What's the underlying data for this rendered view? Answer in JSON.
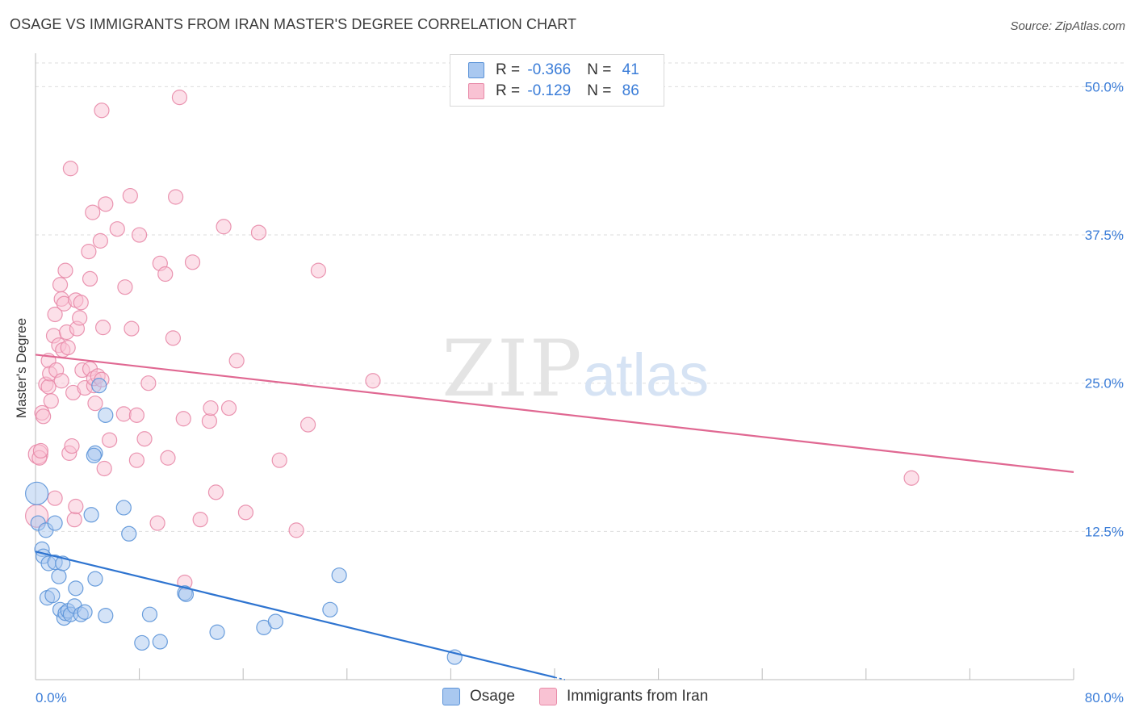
{
  "title": "OSAGE VS IMMIGRANTS FROM IRAN MASTER'S DEGREE CORRELATION CHART",
  "source": "Source: ZipAtlas.com",
  "watermark": {
    "zip": "ZIP",
    "atlas": "atlas"
  },
  "legend_top": {
    "rows": [
      {
        "r_label": "R = ",
        "r_value": "-0.366",
        "n_label": "N = ",
        "n_value": "41",
        "color": "#a9c8f0",
        "border": "#5b93d8"
      },
      {
        "r_label": "R = ",
        "r_value": "-0.129",
        "n_label": "N = ",
        "n_value": "86",
        "color": "#f9c2d3",
        "border": "#e88aa8"
      }
    ]
  },
  "legend_bottom": [
    {
      "label": "Osage",
      "color": "#a9c8f0",
      "border": "#5b93d8"
    },
    {
      "label": "Immigrants from Iran",
      "color": "#f9c2d3",
      "border": "#e88aa8"
    }
  ],
  "chart_data": {
    "type": "scatter",
    "ylabel": "Master's Degree",
    "x_tick_labels": {
      "min": "0.0%",
      "max": "80.0%"
    },
    "y_tick_labels": [
      "12.5%",
      "25.0%",
      "37.5%",
      "50.0%"
    ],
    "xlim": [
      0,
      80
    ],
    "ylim": [
      0,
      52
    ],
    "grid": true,
    "series": [
      {
        "name": "Osage",
        "color": "#5b93d8",
        "fill": "#a9c8f0",
        "trend": {
          "x": [
            0,
            40
          ],
          "y": [
            10.8,
            0.2
          ],
          "color": "#2e74d0"
        },
        "points": [
          [
            0.1,
            15.7,
            14
          ],
          [
            0.2,
            13.2,
            9
          ],
          [
            0.5,
            11.0,
            9
          ],
          [
            0.6,
            10.4,
            9
          ],
          [
            0.8,
            12.6,
            9
          ],
          [
            0.9,
            6.9,
            9
          ],
          [
            1.0,
            9.8,
            9
          ],
          [
            1.3,
            7.1,
            9
          ],
          [
            1.5,
            9.9,
            9
          ],
          [
            1.5,
            13.2,
            9
          ],
          [
            1.8,
            8.7,
            9
          ],
          [
            1.9,
            5.9,
            9
          ],
          [
            2.1,
            9.8,
            9
          ],
          [
            2.2,
            5.2,
            9
          ],
          [
            2.3,
            5.6,
            9
          ],
          [
            2.5,
            5.8,
            9
          ],
          [
            2.7,
            5.5,
            9
          ],
          [
            3.0,
            6.2,
            9
          ],
          [
            3.1,
            7.7,
            9
          ],
          [
            3.5,
            5.5,
            9
          ],
          [
            3.8,
            5.7,
            9
          ],
          [
            4.3,
            13.9,
            9
          ],
          [
            4.6,
            8.5,
            9
          ],
          [
            4.6,
            19.1,
            9
          ],
          [
            4.9,
            24.8,
            9
          ],
          [
            5.4,
            5.4,
            9
          ],
          [
            5.4,
            22.3,
            9
          ],
          [
            6.8,
            14.5,
            9
          ],
          [
            7.2,
            12.3,
            9
          ],
          [
            8.2,
            3.1,
            9
          ],
          [
            8.8,
            5.5,
            9
          ],
          [
            9.6,
            3.2,
            9
          ],
          [
            11.5,
            7.3,
            9
          ],
          [
            11.6,
            7.2,
            9
          ],
          [
            14.0,
            4.0,
            9
          ],
          [
            17.6,
            4.4,
            9
          ],
          [
            18.5,
            4.9,
            9
          ],
          [
            22.7,
            5.9,
            9
          ],
          [
            23.4,
            8.8,
            9
          ],
          [
            32.3,
            1.9,
            9
          ],
          [
            4.5,
            18.9,
            9
          ]
        ]
      },
      {
        "name": "Immigrants from Iran",
        "color": "#e88aa8",
        "fill": "#f9c2d3",
        "trend": {
          "x": [
            0,
            80
          ],
          "y": [
            27.4,
            17.5
          ],
          "color": "#e06892"
        },
        "points": [
          [
            0.1,
            13.8,
            14
          ],
          [
            0.2,
            19.0,
            12
          ],
          [
            0.3,
            18.7,
            9
          ],
          [
            0.5,
            22.5,
            9
          ],
          [
            0.6,
            22.2,
            9
          ],
          [
            0.8,
            24.9,
            9
          ],
          [
            1.0,
            24.7,
            9
          ],
          [
            1.0,
            26.9,
            9
          ],
          [
            1.1,
            25.8,
            9
          ],
          [
            1.2,
            23.5,
            9
          ],
          [
            1.4,
            29.0,
            9
          ],
          [
            1.5,
            30.8,
            9
          ],
          [
            1.5,
            15.3,
            9
          ],
          [
            1.6,
            26.1,
            9
          ],
          [
            1.8,
            28.2,
            9
          ],
          [
            1.9,
            33.3,
            9
          ],
          [
            2.0,
            32.1,
            9
          ],
          [
            2.1,
            27.8,
            9
          ],
          [
            2.2,
            31.7,
            9
          ],
          [
            2.3,
            34.5,
            9
          ],
          [
            2.4,
            29.3,
            9
          ],
          [
            2.5,
            28.0,
            9
          ],
          [
            2.6,
            19.1,
            9
          ],
          [
            2.7,
            43.1,
            9
          ],
          [
            2.8,
            19.7,
            9
          ],
          [
            2.9,
            24.2,
            9
          ],
          [
            3.0,
            13.5,
            9
          ],
          [
            3.1,
            14.6,
            9
          ],
          [
            3.1,
            32.0,
            9
          ],
          [
            3.2,
            29.6,
            9
          ],
          [
            3.4,
            30.5,
            9
          ],
          [
            3.5,
            31.8,
            9
          ],
          [
            3.6,
            26.1,
            9
          ],
          [
            3.8,
            24.6,
            9
          ],
          [
            4.1,
            36.1,
            9
          ],
          [
            4.2,
            26.2,
            9
          ],
          [
            4.2,
            33.8,
            9
          ],
          [
            4.4,
            39.4,
            9
          ],
          [
            4.5,
            24.8,
            9
          ],
          [
            4.5,
            25.4,
            9
          ],
          [
            4.6,
            23.3,
            9
          ],
          [
            4.8,
            25.6,
            9
          ],
          [
            5.0,
            37.0,
            9
          ],
          [
            5.1,
            48.0,
            9
          ],
          [
            5.1,
            25.3,
            9
          ],
          [
            5.2,
            29.7,
            9
          ],
          [
            5.3,
            17.8,
            9
          ],
          [
            5.4,
            40.1,
            9
          ],
          [
            5.7,
            20.2,
            9
          ],
          [
            6.3,
            38.0,
            9
          ],
          [
            6.8,
            22.4,
            9
          ],
          [
            6.9,
            33.1,
            9
          ],
          [
            7.3,
            40.8,
            9
          ],
          [
            7.4,
            29.6,
            9
          ],
          [
            7.8,
            22.3,
            9
          ],
          [
            7.8,
            18.5,
            9
          ],
          [
            8.0,
            37.5,
            9
          ],
          [
            8.4,
            20.3,
            9
          ],
          [
            8.7,
            25.0,
            9
          ],
          [
            9.4,
            13.2,
            9
          ],
          [
            9.6,
            35.1,
            9
          ],
          [
            10.0,
            34.2,
            9
          ],
          [
            10.2,
            18.7,
            9
          ],
          [
            10.6,
            28.8,
            9
          ],
          [
            10.8,
            40.7,
            9
          ],
          [
            11.1,
            49.1,
            9
          ],
          [
            11.4,
            22.0,
            9
          ],
          [
            11.5,
            8.2,
            9
          ],
          [
            12.1,
            35.2,
            9
          ],
          [
            12.7,
            13.5,
            9
          ],
          [
            13.4,
            21.8,
            9
          ],
          [
            13.5,
            22.9,
            9
          ],
          [
            13.9,
            15.8,
            9
          ],
          [
            14.5,
            38.2,
            9
          ],
          [
            14.9,
            22.9,
            9
          ],
          [
            15.5,
            26.9,
            9
          ],
          [
            16.2,
            14.1,
            9
          ],
          [
            17.2,
            37.7,
            9
          ],
          [
            18.8,
            18.5,
            9
          ],
          [
            20.1,
            12.6,
            9
          ],
          [
            21.0,
            21.5,
            9
          ],
          [
            21.8,
            34.5,
            9
          ],
          [
            26.0,
            25.2,
            9
          ],
          [
            67.5,
            17.0,
            9
          ],
          [
            0.4,
            19.3,
            9
          ],
          [
            2.0,
            25.2,
            9
          ]
        ]
      }
    ]
  }
}
